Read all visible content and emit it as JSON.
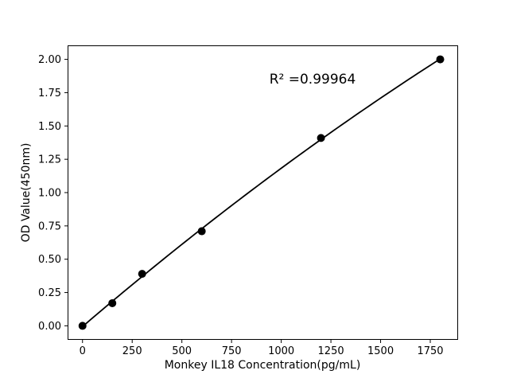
{
  "figure": {
    "background": "#ffffff",
    "foreground": "#000000"
  },
  "chart_data": {
    "type": "scatter",
    "title": "",
    "xlabel": "Monkey IL18 Concentration(pg/mL)",
    "ylabel": "OD Value(450nm)",
    "grid": false,
    "legend": null,
    "annotation": {
      "text": "R² =0.99964"
    },
    "x_axis": {
      "lim": [
        -75,
        1890
      ],
      "ticks": [
        0,
        250,
        500,
        750,
        1000,
        1250,
        1500,
        1750
      ],
      "tick_labels": [
        "0",
        "250",
        "500",
        "750",
        "1000",
        "1250",
        "1500",
        "1750"
      ]
    },
    "y_axis": {
      "lim": [
        -0.105,
        2.105
      ],
      "ticks": [
        0,
        0.25,
        0.5,
        0.75,
        1,
        1.25,
        1.5,
        1.75,
        2
      ],
      "tick_labels": [
        "0.00",
        "0.25",
        "0.50",
        "0.75",
        "1.00",
        "1.25",
        "1.50",
        "1.75",
        "2.00"
      ]
    },
    "series": [
      {
        "name": "standard-points",
        "type": "scatter",
        "marker": "circle",
        "color": "#000000",
        "marker_radius": 5,
        "x": [
          0,
          150,
          300,
          600,
          1200,
          1800
        ],
        "y": [
          0.0,
          0.17,
          0.39,
          0.71,
          1.41,
          2.0
        ]
      },
      {
        "name": "fit-curve",
        "type": "line",
        "color": "#000000",
        "line_width": 1.8,
        "fit": {
          "kind": "quadratic",
          "coefficients": [
            -0.00533,
            0.00127793,
            -8.998e-08
          ],
          "x_range": [
            0,
            1800
          ]
        }
      }
    ]
  }
}
